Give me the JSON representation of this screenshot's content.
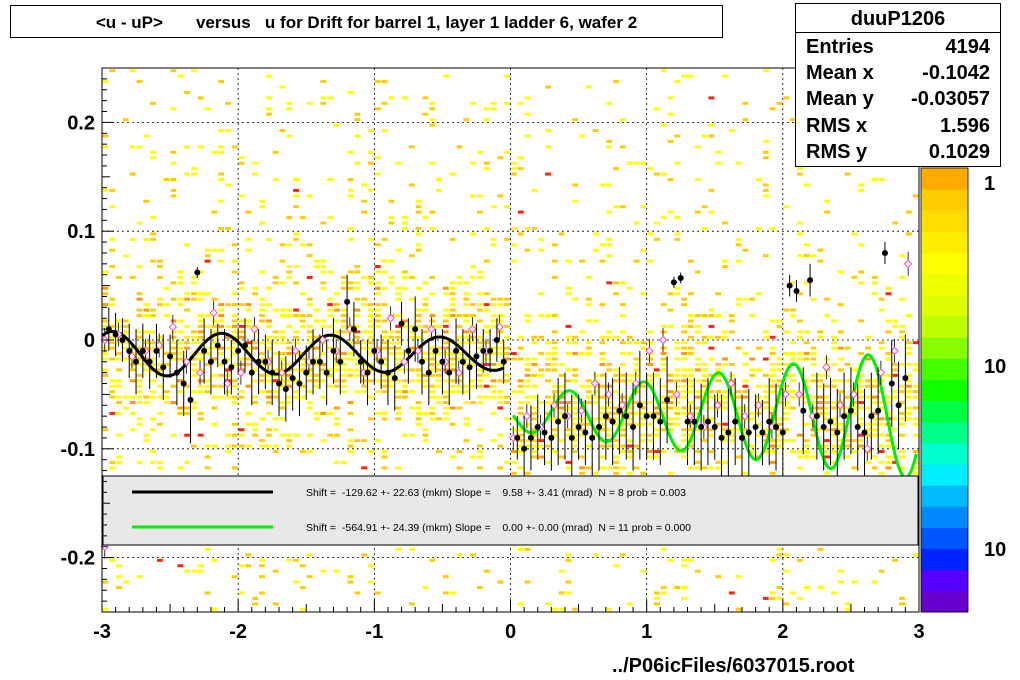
{
  "title": "<u - uP>       versus   u for Drift for barrel 1, layer 1 ladder 6, wafer 2",
  "stats": {
    "name": "duuP1206",
    "rows": [
      {
        "label": "Entries",
        "value": "4194"
      },
      {
        "label": "Mean x",
        "value": "-0.1042"
      },
      {
        "label": "Mean y",
        "value": "-0.03057"
      },
      {
        "label": "RMS x",
        "value": "1.596"
      },
      {
        "label": "RMS y",
        "value": "0.1029"
      }
    ]
  },
  "footer": "../P06icFiles/6037015.root",
  "legend": [
    {
      "text": "Shift =  -129.62 +- 22.63 (mkm) Slope =    9.58 +- 3.41 (mrad)  N = 8 prob = 0.003",
      "color": "#000000"
    },
    {
      "text": "Shift =  -564.91 +- 24.39 (mkm) Slope =    0.00 +- 0.00 (mrad)  N = 11 prob = 0.000",
      "color": "#00ee00"
    }
  ],
  "palette": {
    "hist": [
      "#ffff00",
      "#ffcc00",
      "#ff9900",
      "#ff2200"
    ],
    "colorbar": [
      "#6600cc",
      "#5500ff",
      "#0022ff",
      "#0055ff",
      "#0088ff",
      "#00bbff",
      "#00eeff",
      "#00ffcc",
      "#00ff88",
      "#00ff44",
      "#11ff00",
      "#44ff00",
      "#88ff00",
      "#bbff00",
      "#ddff00",
      "#eeff00",
      "#ffff00",
      "#ffee00",
      "#ffdd00",
      "#ffcc00",
      "#ffaa00"
    ],
    "colorbar_labels": [
      "1",
      "10",
      "10"
    ]
  },
  "chart_data": {
    "type": "scatter",
    "xlim": [
      -3,
      3
    ],
    "ylim": [
      -0.25,
      0.25
    ],
    "xticks": [
      "-3",
      "-2",
      "-1",
      "0",
      "1",
      "2",
      "3"
    ],
    "yticks": [
      "-0.2",
      "-0.1",
      "0",
      "0.1",
      "0.2"
    ],
    "grid": true,
    "profile_black": {
      "x": [
        -2.95,
        -2.9,
        -2.85,
        -2.8,
        -2.75,
        -2.7,
        -2.65,
        -2.6,
        -2.55,
        -2.5,
        -2.45,
        -2.4,
        -2.35,
        -2.3,
        -2.25,
        -2.2,
        -2.15,
        -2.1,
        -2.05,
        -2.0,
        -1.95,
        -1.9,
        -1.85,
        -1.8,
        -1.75,
        -1.7,
        -1.65,
        -1.6,
        -1.55,
        -1.5,
        -1.45,
        -1.4,
        -1.35,
        -1.3,
        -1.25,
        -1.2,
        -1.15,
        -1.1,
        -1.05,
        -1.0,
        -0.95,
        -0.9,
        -0.85,
        -0.8,
        -0.75,
        -0.7,
        -0.65,
        -0.6,
        -0.55,
        -0.5,
        -0.45,
        -0.4,
        -0.35,
        -0.3,
        -0.25,
        -0.2,
        -0.15,
        -0.1,
        -0.05,
        0.05,
        0.1,
        0.15,
        0.2,
        0.25,
        0.3,
        0.35,
        0.4,
        0.45,
        0.5,
        0.55,
        0.6,
        0.65,
        0.7,
        0.75,
        0.8,
        0.85,
        0.9,
        0.95,
        1.0,
        1.05,
        1.1,
        1.15,
        1.2,
        1.25,
        1.3,
        1.35,
        1.4,
        1.45,
        1.5,
        1.55,
        1.6,
        1.65,
        1.7,
        1.75,
        1.8,
        1.85,
        1.9,
        1.95,
        2.0,
        2.05,
        2.1,
        2.15,
        2.2,
        2.25,
        2.3,
        2.35,
        2.4,
        2.45,
        2.5,
        2.55,
        2.6,
        2.65,
        2.7,
        2.75,
        2.8,
        2.85,
        2.9
      ],
      "y": [
        0.01,
        0.005,
        0.0,
        -0.01,
        -0.02,
        -0.01,
        -0.02,
        -0.01,
        -0.025,
        -0.015,
        -0.03,
        -0.04,
        -0.055,
        0.062,
        -0.01,
        -0.02,
        -0.005,
        -0.02,
        -0.025,
        -0.01,
        -0.005,
        -0.03,
        -0.02,
        -0.02,
        -0.03,
        -0.04,
        -0.045,
        -0.035,
        -0.04,
        -0.03,
        -0.02,
        -0.02,
        -0.03,
        -0.01,
        -0.02,
        0.035,
        0.01,
        -0.02,
        -0.03,
        -0.01,
        -0.02,
        -0.03,
        -0.035,
        0.015,
        -0.01,
        0.01,
        -0.02,
        -0.03,
        -0.01,
        -0.02,
        -0.03,
        -0.01,
        -0.02,
        -0.025,
        -0.015,
        -0.01,
        -0.01,
        0.0,
        -0.02,
        -0.09,
        -0.1,
        -0.09,
        -0.08,
        -0.085,
        -0.09,
        -0.075,
        -0.07,
        -0.09,
        -0.08,
        -0.085,
        -0.09,
        -0.08,
        -0.07,
        -0.075,
        -0.065,
        -0.07,
        -0.08,
        -0.06,
        -0.07,
        -0.07,
        -0.075,
        -0.055,
        0.053,
        0.057,
        -0.075,
        -0.075,
        -0.08,
        -0.075,
        -0.08,
        -0.09,
        -0.085,
        -0.075,
        -0.09,
        -0.085,
        -0.08,
        -0.085,
        -0.075,
        -0.08,
        -0.085,
        0.05,
        0.045,
        -0.065,
        0.055,
        -0.07,
        -0.08,
        -0.075,
        -0.085,
        -0.07,
        -0.065,
        -0.08,
        -0.085,
        -0.07,
        -0.065,
        0.08,
        -0.04,
        -0.06,
        -0.035
      ],
      "err": [
        0.02,
        0.02,
        0.02,
        0.025,
        0.03,
        0.025,
        0.025,
        0.025,
        0.03,
        0.02,
        0.03,
        0.03,
        0.04,
        0.005,
        0.03,
        0.03,
        0.02,
        0.03,
        0.025,
        0.02,
        0.025,
        0.03,
        0.03,
        0.025,
        0.03,
        0.03,
        0.03,
        0.03,
        0.03,
        0.025,
        0.03,
        0.025,
        0.03,
        0.03,
        0.03,
        0.025,
        0.025,
        0.02,
        0.03,
        0.03,
        0.025,
        0.03,
        0.03,
        0.02,
        0.03,
        0.03,
        0.03,
        0.03,
        0.02,
        0.03,
        0.03,
        0.03,
        0.03,
        0.03,
        0.03,
        0.02,
        0.02,
        0.02,
        0.02,
        0.02,
        0.03,
        0.03,
        0.03,
        0.03,
        0.03,
        0.04,
        0.04,
        0.04,
        0.03,
        0.03,
        0.04,
        0.04,
        0.04,
        0.04,
        0.04,
        0.04,
        0.04,
        0.05,
        0.04,
        0.04,
        0.04,
        0.04,
        0.005,
        0.005,
        0.04,
        0.04,
        0.04,
        0.04,
        0.03,
        0.04,
        0.04,
        0.04,
        0.04,
        0.04,
        0.03,
        0.03,
        0.04,
        0.04,
        0.04,
        0.01,
        0.01,
        0.04,
        0.015,
        0.04,
        0.04,
        0.04,
        0.04,
        0.04,
        0.04,
        0.04,
        0.04,
        0.04,
        0.04,
        0.01,
        0.04,
        0.04,
        0.04
      ]
    },
    "profile_open": {
      "x": [
        -2.98,
        -2.88,
        -2.78,
        -2.68,
        -2.58,
        -2.48,
        -2.38,
        -2.28,
        -2.18,
        -2.08,
        -1.98,
        -1.88,
        -1.78,
        -1.68,
        -1.58,
        -1.48,
        -1.38,
        -1.28,
        -1.18,
        -1.08,
        -0.98,
        -0.88,
        -0.78,
        -0.68,
        -0.58,
        -0.48,
        -0.38,
        -0.28,
        -0.18,
        -0.08,
        0.02,
        0.12,
        0.22,
        0.32,
        0.42,
        0.52,
        0.62,
        0.72,
        0.82,
        0.92,
        1.02,
        1.12,
        1.22,
        1.32,
        1.42,
        1.52,
        1.62,
        1.72,
        1.82,
        1.92,
        2.02,
        2.12,
        2.22,
        2.32,
        2.42,
        2.52,
        2.62,
        2.72,
        2.82,
        2.92,
        -2.98
      ],
      "y": [
        0.0,
        0.005,
        -0.015,
        -0.01,
        -0.005,
        0.012,
        -0.02,
        -0.03,
        0.025,
        -0.04,
        -0.03,
        0.01,
        -0.02,
        -0.03,
        -0.01,
        -0.02,
        0.0,
        -0.01,
        0.01,
        -0.03,
        -0.01,
        0.02,
        -0.02,
        -0.01,
        0.01,
        -0.02,
        -0.03,
        0.01,
        -0.01,
        0.012,
        -0.09,
        -0.07,
        -0.08,
        -0.06,
        -0.07,
        -0.065,
        -0.04,
        -0.05,
        -0.06,
        -0.04,
        -0.01,
        0.0,
        -0.05,
        -0.07,
        -0.08,
        -0.06,
        -0.04,
        -0.07,
        -0.06,
        -0.08,
        -0.05,
        -0.05,
        -0.07,
        -0.025,
        -0.06,
        -0.05,
        -0.1,
        -0.03,
        -0.01,
        0.07,
        -0.19
      ]
    },
    "fit_black": {
      "x": [
        -3.0,
        -0.05
      ],
      "shift_mkm": -129.62,
      "slope_mrad": 9.58
    },
    "fit_green": {
      "x": [
        0.02,
        2.98
      ],
      "shift_mkm": -564.91,
      "slope_mrad": 0.0
    }
  }
}
